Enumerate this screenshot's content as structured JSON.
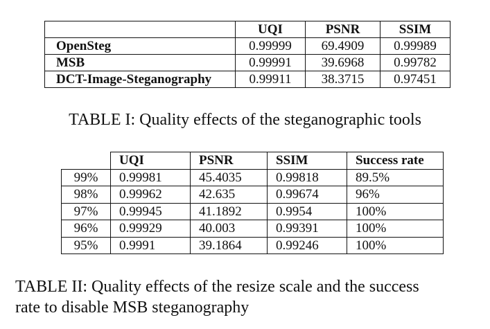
{
  "table1": {
    "headers": [
      "",
      "UQI",
      "PSNR",
      "SSIM"
    ],
    "rows": [
      {
        "name": "OpenSteg",
        "values": [
          "0.99999",
          "69.4909",
          "0.99989"
        ]
      },
      {
        "name": "MSB",
        "values": [
          "0.99991",
          "39.6968",
          "0.99782"
        ]
      },
      {
        "name": "DCT-Image-Steganography",
        "values": [
          "0.99911",
          "38.3715",
          "0.97451"
        ]
      }
    ],
    "caption": "TABLE I: Quality effects of the steganographic tools"
  },
  "table2": {
    "headers": [
      "",
      "UQI",
      "PSNR",
      "SSIM",
      "Success rate"
    ],
    "rows": [
      {
        "name": "99%",
        "values": [
          "0.99981",
          "45.4035",
          "0.99818",
          "89.5%"
        ]
      },
      {
        "name": "98%",
        "values": [
          "0.99962",
          "42.635",
          "0.99674",
          "96%"
        ]
      },
      {
        "name": "97%",
        "values": [
          "0.99945",
          "41.1892",
          "0.9954",
          "100%"
        ]
      },
      {
        "name": "96%",
        "values": [
          "0.99929",
          "40.003",
          "0.99391",
          "100%"
        ]
      },
      {
        "name": "95%",
        "values": [
          "0.9991",
          "39.1864",
          "0.99246",
          "100%"
        ]
      }
    ],
    "caption_line1": "TABLE II: Quality effects of the resize scale and the success",
    "caption_line2": "rate to disable MSB steganography"
  }
}
